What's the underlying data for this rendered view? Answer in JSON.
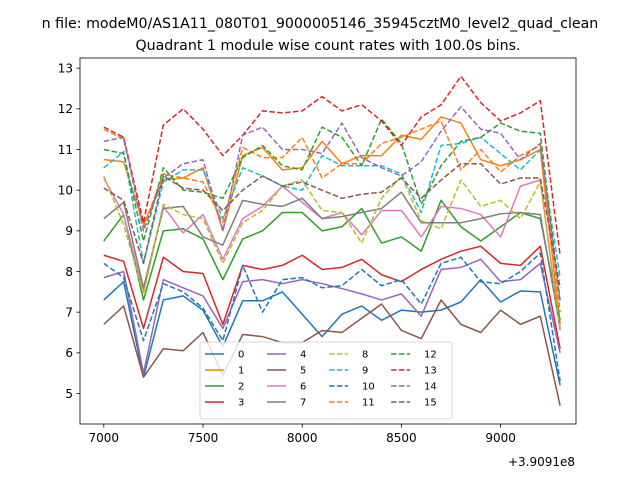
{
  "chart_data": {
    "type": "line",
    "suptitle": "n file: modeM0/AS1A11_080T01_9000005146_35945cztM0_level2_quad_clean",
    "title": "Quadrant 1 module wise count rates with 100.0s bins.",
    "xlabel": "",
    "ylabel": "",
    "x_offset_label": "+3.9091e8",
    "xlim": [
      6880,
      9380
    ],
    "ylim": [
      4.25,
      13.25
    ],
    "x_ticks": [
      7000,
      7500,
      8000,
      8500,
      9000
    ],
    "x_tick_labels": [
      "7000",
      "7500",
      "8000",
      "8500",
      "9000"
    ],
    "y_ticks": [
      5,
      6,
      7,
      8,
      9,
      10,
      11,
      12,
      13
    ],
    "y_tick_labels": [
      "5",
      "6",
      "7",
      "8",
      "9",
      "10",
      "11",
      "12",
      "13"
    ],
    "legend_position": "lower-center",
    "x": [
      7000,
      7100,
      7200,
      7300,
      7400,
      7500,
      7600,
      7700,
      7800,
      7900,
      8000,
      8100,
      8200,
      8300,
      8400,
      8500,
      8600,
      8700,
      8800,
      8900,
      9000,
      9100,
      9200,
      9300
    ],
    "series": [
      {
        "name": "0",
        "color": "#1f77b4",
        "dash": "solid",
        "values": [
          7.3,
          7.75,
          5.4,
          7.3,
          7.4,
          7.05,
          6.15,
          7.28,
          7.28,
          7.5,
          6.95,
          6.4,
          6.95,
          7.15,
          6.8,
          7.05,
          7.0,
          7.05,
          7.25,
          7.8,
          7.25,
          7.52,
          7.5,
          5.2
        ]
      },
      {
        "name": "1",
        "color": "#ff7f0e",
        "dash": "solid",
        "values": [
          10.75,
          10.7,
          9.15,
          10.25,
          10.3,
          10.55,
          9.0,
          10.85,
          11.05,
          10.5,
          10.55,
          11.2,
          10.65,
          10.85,
          10.85,
          11.35,
          11.25,
          11.8,
          11.65,
          10.75,
          10.6,
          10.75,
          11.0,
          6.7
        ]
      },
      {
        "name": "2",
        "color": "#2ca02c",
        "dash": "solid",
        "values": [
          8.75,
          9.4,
          7.3,
          9.0,
          9.05,
          8.8,
          7.8,
          8.8,
          9.0,
          9.45,
          9.45,
          9.0,
          9.1,
          9.55,
          8.7,
          8.85,
          8.5,
          9.75,
          9.1,
          8.75,
          9.1,
          9.45,
          9.3,
          6.8
        ]
      },
      {
        "name": "3",
        "color": "#d62728",
        "dash": "solid",
        "values": [
          8.4,
          8.25,
          6.6,
          8.35,
          8.0,
          7.95,
          6.7,
          8.15,
          8.05,
          8.15,
          8.4,
          8.05,
          8.1,
          8.3,
          7.92,
          7.75,
          8.05,
          8.3,
          8.5,
          8.62,
          8.2,
          8.15,
          8.62,
          6.1
        ]
      },
      {
        "name": "4",
        "color": "#9467bd",
        "dash": "solid",
        "values": [
          7.85,
          8.0,
          5.5,
          7.8,
          7.6,
          7.4,
          6.6,
          7.75,
          7.8,
          7.7,
          7.8,
          7.7,
          7.58,
          7.45,
          7.3,
          7.45,
          6.9,
          8.05,
          8.1,
          8.3,
          7.75,
          7.8,
          8.2,
          6.0
        ]
      },
      {
        "name": "5",
        "color": "#8c564b",
        "dash": "solid",
        "values": [
          6.7,
          7.15,
          5.4,
          6.1,
          6.05,
          6.5,
          5.45,
          6.45,
          6.4,
          6.25,
          6.25,
          6.55,
          6.5,
          6.85,
          7.2,
          6.55,
          6.35,
          7.3,
          6.7,
          6.5,
          7.05,
          6.7,
          6.9,
          4.7
        ]
      },
      {
        "name": "6",
        "color": "#e377c2",
        "dash": "solid",
        "values": [
          10.3,
          9.4,
          7.5,
          9.6,
          8.95,
          9.4,
          8.3,
          9.3,
          9.6,
          10.1,
          9.7,
          9.3,
          9.45,
          8.9,
          9.5,
          9.5,
          8.85,
          9.6,
          9.55,
          9.4,
          8.85,
          10.1,
          10.25,
          6.55
        ]
      },
      {
        "name": "7",
        "color": "#7f7f7f",
        "dash": "solid",
        "values": [
          9.3,
          9.7,
          7.6,
          9.55,
          9.6,
          8.85,
          8.65,
          9.75,
          9.65,
          9.6,
          9.8,
          9.3,
          9.35,
          9.45,
          9.55,
          9.95,
          9.2,
          9.2,
          9.2,
          9.3,
          9.42,
          9.45,
          9.4,
          6.6
        ]
      },
      {
        "name": "8",
        "color": "#bcbd22",
        "dash": "dashed",
        "values": [
          10.35,
          9.15,
          7.45,
          9.65,
          9.4,
          9.3,
          8.2,
          9.2,
          9.5,
          10.1,
          10.25,
          9.5,
          9.45,
          8.7,
          9.8,
          10.35,
          9.25,
          9.05,
          10.25,
          9.6,
          9.75,
          9.3,
          10.2,
          6.55
        ]
      },
      {
        "name": "9",
        "color": "#17becf",
        "dash": "dashed",
        "values": [
          10.55,
          10.95,
          8.2,
          10.2,
          10.5,
          10.5,
          9.3,
          10.55,
          10.35,
          10.1,
          10.0,
          10.85,
          10.6,
          10.6,
          10.6,
          10.4,
          9.45,
          11.1,
          11.15,
          11.3,
          10.9,
          10.5,
          11.0,
          7.85
        ]
      },
      {
        "name": "10",
        "color": "#1f77b4",
        "dash": "dashed",
        "values": [
          8.2,
          7.85,
          6.3,
          7.7,
          7.5,
          7.1,
          6.3,
          8.15,
          7.0,
          7.8,
          7.85,
          7.6,
          7.65,
          8.05,
          7.65,
          7.8,
          7.2,
          8.2,
          8.35,
          7.75,
          7.7,
          8.0,
          8.45,
          5.3
        ]
      },
      {
        "name": "11",
        "color": "#ff7f0e",
        "dash": "dashed",
        "values": [
          11.5,
          11.25,
          9.1,
          10.4,
          10.3,
          10.2,
          9.2,
          11.05,
          10.8,
          10.8,
          11.3,
          10.3,
          10.65,
          10.65,
          11.15,
          11.3,
          11.5,
          11.7,
          10.5,
          11.0,
          10.45,
          10.85,
          11.1,
          7.0
        ]
      },
      {
        "name": "12",
        "color": "#2ca02c",
        "dash": "dashed",
        "values": [
          11.0,
          10.9,
          8.75,
          10.55,
          10.0,
          9.95,
          9.8,
          10.8,
          11.1,
          10.6,
          10.5,
          11.55,
          11.3,
          10.6,
          11.75,
          11.15,
          9.65,
          10.6,
          11.2,
          11.3,
          11.65,
          11.45,
          11.4,
          7.25
        ]
      },
      {
        "name": "13",
        "color": "#d62728",
        "dash": "dashed",
        "values": [
          11.55,
          11.3,
          9.2,
          11.6,
          12.0,
          11.5,
          10.85,
          11.35,
          11.95,
          11.9,
          11.95,
          12.3,
          11.95,
          12.1,
          11.7,
          11.1,
          11.8,
          12.1,
          12.8,
          12.15,
          11.7,
          11.9,
          12.2,
          8.4
        ]
      },
      {
        "name": "14",
        "color": "#9467bd",
        "dash": "dashed",
        "values": [
          11.2,
          11.3,
          9.0,
          10.3,
          10.65,
          10.75,
          9.0,
          11.35,
          11.55,
          11.0,
          11.0,
          10.9,
          11.65,
          10.8,
          10.55,
          10.35,
          10.7,
          11.45,
          12.05,
          11.5,
          11.4,
          10.75,
          11.15,
          7.3
        ]
      },
      {
        "name": "15",
        "color": "#8c564b",
        "dash": "dashed",
        "values": [
          10.05,
          9.75,
          8.2,
          10.35,
          10.05,
          10.0,
          9.5,
          10.0,
          10.35,
          10.1,
          10.2,
          10.0,
          9.8,
          9.9,
          9.95,
          10.3,
          9.8,
          10.25,
          10.65,
          10.65,
          10.15,
          10.3,
          10.3,
          7.6
        ]
      }
    ]
  }
}
